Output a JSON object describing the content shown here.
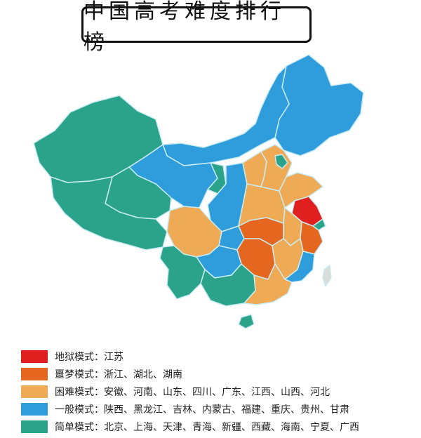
{
  "title": "中国高考难度排行榜",
  "colors": {
    "hell": "#e0201f",
    "nightmare": "#e4661f",
    "hard": "#eeaa55",
    "normal": "#2f9ddb",
    "easy": "#2ba28a",
    "border": "#bfe6ee"
  },
  "legend": [
    {
      "mode": "地狱模式",
      "sep": "：",
      "provinces": "江苏",
      "color": "#e0201f"
    },
    {
      "mode": "噩梦模式",
      "sep": "：",
      "provinces": "浙江、湖北、湖南",
      "color": "#e4661f"
    },
    {
      "mode": "困难模式",
      "sep": "：",
      "provinces": "安徽、河南、山东、四川、广东、江西、山西、河北",
      "color": "#eeaa55"
    },
    {
      "mode": "一般模式",
      "sep": "：",
      "provinces": "陕西、黑龙江、吉林、内蒙古、福建、重庆、贵州、甘肃",
      "color": "#2f9ddb"
    },
    {
      "mode": "简单模式",
      "sep": "：",
      "provinces": "北京、上海、天津、青海、新疆、西藏、海南、宁夏、广西",
      "color": "#2ba28a"
    }
  ]
}
